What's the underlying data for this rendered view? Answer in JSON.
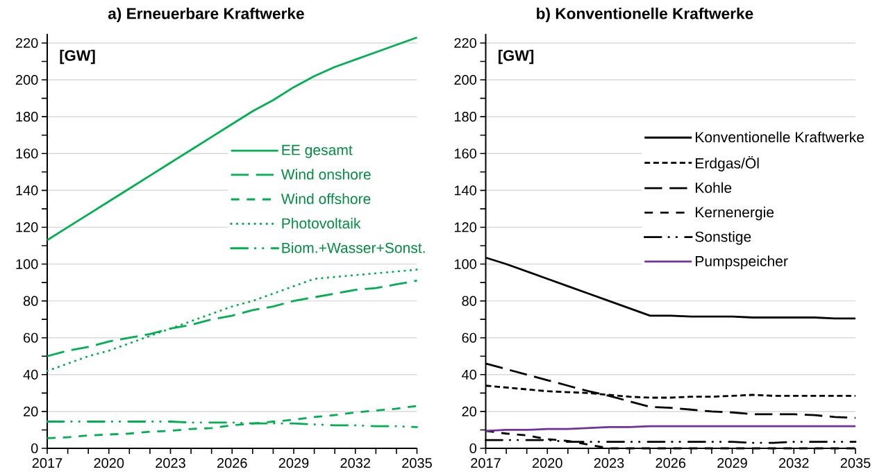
{
  "chart_data": [
    {
      "type": "line",
      "title": "a) Erneuerbare Kraftwerke",
      "ylabel": "[GW]",
      "x": [
        2017,
        2018,
        2019,
        2020,
        2021,
        2022,
        2023,
        2024,
        2025,
        2026,
        2027,
        2028,
        2029,
        2030,
        2031,
        2032,
        2033,
        2034,
        2035
      ],
      "series": [
        {
          "name": "EE gesamt",
          "color": "#00b050",
          "line_style": "solid",
          "values": [
            113,
            120,
            127,
            134,
            141,
            148,
            155,
            162,
            169,
            176,
            183,
            189,
            196,
            202,
            207,
            211,
            215,
            219,
            223
          ]
        },
        {
          "name": "Wind onshore",
          "color": "#00b050",
          "line_style": "long dashed",
          "values": [
            50,
            53,
            55,
            58,
            60,
            62,
            65,
            67,
            70,
            72,
            75,
            77,
            80,
            82,
            84,
            86,
            87,
            89,
            91
          ]
        },
        {
          "name": "Wind offshore",
          "color": "#00b050",
          "line_style": "dashed",
          "values": [
            5.5,
            6,
            7,
            7.5,
            8,
            9,
            9.5,
            10.5,
            11,
            12.5,
            13.5,
            14.5,
            15.5,
            17,
            18,
            19.5,
            20.5,
            21.5,
            23
          ]
        },
        {
          "name": "Photovoltaik",
          "color": "#00b050",
          "line_style": "dotted",
          "values": [
            42,
            46,
            50,
            53,
            57,
            61,
            65,
            69,
            73,
            77,
            80,
            84,
            88,
            92,
            93,
            94,
            95,
            96,
            97
          ]
        },
        {
          "name": "Biom.+Wasser+Sonst.",
          "color": "#00b050",
          "line_style": "dash dot dot",
          "values": [
            14.5,
            14.5,
            14.5,
            14.5,
            14.5,
            14.5,
            14.5,
            14,
            14,
            14,
            13.5,
            13.5,
            13.5,
            13,
            12.5,
            12.5,
            12,
            12,
            11.5
          ]
        }
      ],
      "xlim": [
        2017,
        2035
      ],
      "xticks": [
        2017,
        {
          "value": 2018,
          "label": null
        },
        {
          "value": 2019,
          "label": null
        },
        2020,
        {
          "value": 2021,
          "label": null
        },
        {
          "value": 2022,
          "label": null
        },
        2023,
        {
          "value": 2024,
          "label": null
        },
        {
          "value": 2025,
          "label": null
        },
        2026,
        {
          "value": 2027,
          "label": null
        },
        {
          "value": 2028,
          "label": null
        },
        2029,
        {
          "value": 2030,
          "label": null
        },
        {
          "value": 2031,
          "label": null
        },
        2032,
        {
          "value": 2033,
          "label": null
        },
        {
          "value": 2034,
          "label": null
        },
        2035
      ],
      "ylim": [
        0,
        225
      ],
      "yticks": [
        0,
        {
          "value": 10,
          "label": null
        },
        20,
        {
          "value": 30,
          "label": null
        },
        40,
        {
          "value": 50,
          "label": null
        },
        60,
        {
          "value": 70,
          "label": null
        },
        80,
        {
          "value": 90,
          "label": null
        },
        100,
        {
          "value": 110,
          "label": null
        },
        120,
        {
          "value": 130,
          "label": null
        },
        140,
        {
          "value": 150,
          "label": null
        },
        160,
        {
          "value": 170,
          "label": null
        },
        180,
        {
          "value": 190,
          "label": null
        },
        200,
        {
          "value": 210,
          "label": null
        },
        220
      ],
      "grid": "y",
      "legend": "right"
    },
    {
      "type": "line",
      "title": "b) Konventionelle Kraftwerke",
      "ylabel": "[GW]",
      "x": [
        2017,
        2018,
        2019,
        2020,
        2021,
        2022,
        2023,
        2024,
        2025,
        2026,
        2027,
        2028,
        2029,
        2030,
        2031,
        2032,
        2033,
        2034,
        2035
      ],
      "series": [
        {
          "name": "Konventionelle Kraftwerke",
          "color": "#000000",
          "line_style": "solid",
          "values": [
            103.5,
            100,
            96,
            92,
            88,
            84,
            80,
            76,
            72,
            72,
            71.5,
            71.5,
            71.5,
            71,
            71,
            71,
            71,
            70.5,
            70.5
          ]
        },
        {
          "name": "Erdgas/Öl",
          "color": "#000000",
          "line_style": "short dashed",
          "values": [
            34,
            33,
            32,
            31,
            30.5,
            30,
            29,
            28,
            27.5,
            27.5,
            28,
            28,
            28.5,
            29,
            28.5,
            28.5,
            28.5,
            28.5,
            28.5
          ]
        },
        {
          "name": "Kohle",
          "color": "#000000",
          "line_style": "long dashed",
          "values": [
            46,
            43,
            40,
            37,
            34,
            31,
            28.5,
            25.5,
            22.5,
            22,
            21,
            20,
            19.5,
            18.5,
            18.5,
            18.5,
            18,
            17,
            16.5
          ]
        },
        {
          "name": "Kernenergie",
          "color": "#000000",
          "line_style": "dashed",
          "values": [
            9.5,
            8,
            7,
            5,
            4,
            2,
            0,
            0,
            0,
            0,
            0,
            0,
            0,
            0,
            0,
            0,
            0,
            0,
            0
          ]
        },
        {
          "name": "Sonstige",
          "color": "#000000",
          "line_style": "dash dot dot",
          "values": [
            4.5,
            4.5,
            4.5,
            4.5,
            3.5,
            3.5,
            3.5,
            3.5,
            3.5,
            3.5,
            3.5,
            3.5,
            3.5,
            3,
            3,
            3.5,
            3.5,
            3.5,
            3.5
          ]
        },
        {
          "name": "Pumpspeicher",
          "color": "#7030a0",
          "line_style": "solid",
          "values": [
            9.5,
            10,
            10,
            10.5,
            10.5,
            11,
            11.5,
            11.5,
            12,
            12,
            12,
            12,
            12,
            12,
            12,
            12,
            12,
            12,
            12
          ]
        }
      ],
      "xlim": [
        2017,
        2035
      ],
      "xticks": [
        2017,
        {
          "value": 2018,
          "label": null
        },
        {
          "value": 2019,
          "label": null
        },
        2020,
        {
          "value": 2021,
          "label": null
        },
        {
          "value": 2022,
          "label": null
        },
        2023,
        {
          "value": 2024,
          "label": null
        },
        {
          "value": 2025,
          "label": null
        },
        2026,
        {
          "value": 2027,
          "label": null
        },
        {
          "value": 2028,
          "label": null
        },
        2029,
        {
          "value": 2030,
          "label": null
        },
        {
          "value": 2031,
          "label": null
        },
        2032,
        {
          "value": 2033,
          "label": null
        },
        {
          "value": 2034,
          "label": null
        },
        2035
      ],
      "ylim": [
        0,
        225
      ],
      "yticks": [
        0,
        {
          "value": 10,
          "label": null
        },
        20,
        {
          "value": 30,
          "label": null
        },
        40,
        {
          "value": 50,
          "label": null
        },
        60,
        {
          "value": 70,
          "label": null
        },
        80,
        {
          "value": 90,
          "label": null
        },
        100,
        {
          "value": 110,
          "label": null
        },
        120,
        {
          "value": 130,
          "label": null
        },
        140,
        {
          "value": 150,
          "label": null
        },
        160,
        {
          "value": 170,
          "label": null
        },
        180,
        {
          "value": 190,
          "label": null
        },
        200,
        {
          "value": 210,
          "label": null
        },
        220
      ],
      "grid": "y",
      "legend": "right"
    }
  ]
}
